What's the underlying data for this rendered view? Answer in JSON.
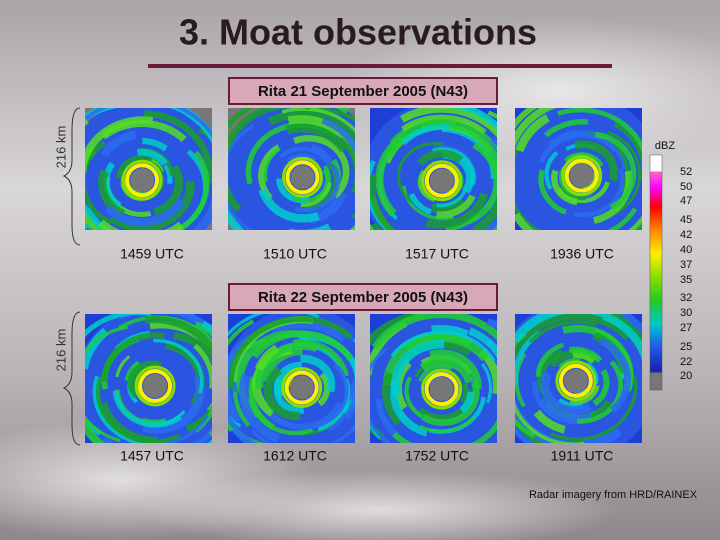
{
  "title": "3. Moat observations",
  "rows": [
    {
      "label": "Rita 21 September  2005 (N43)",
      "scale": "216 km",
      "images": [
        {
          "time": "1459 UTC"
        },
        {
          "time": "1510 UTC"
        },
        {
          "time": "1517 UTC"
        },
        {
          "time": "1936 UTC"
        }
      ]
    },
    {
      "label": "Rita 22 September  2005 (N43)",
      "scale": "216 km",
      "images": [
        {
          "time": "1457 UTC"
        },
        {
          "time": "1612 UTC"
        },
        {
          "time": "1752 UTC"
        },
        {
          "time": "1911 UTC"
        }
      ]
    }
  ],
  "colorbar": {
    "unit": "dBZ",
    "labels": [
      "52",
      "50",
      "47",
      "45",
      "42",
      "40",
      "37",
      "35",
      "32",
      "30",
      "27",
      "25",
      "22",
      "20"
    ]
  },
  "credit": "Radar imagery from HRD/RAINEX"
}
